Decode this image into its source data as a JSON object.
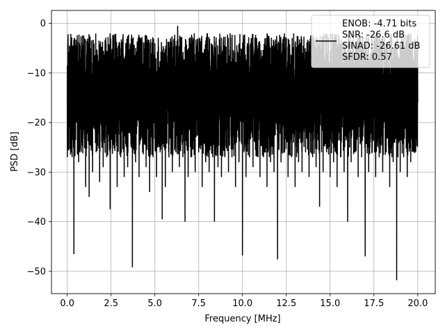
{
  "chart_data": {
    "type": "line",
    "title": "",
    "xlabel": "Frequency [MHz]",
    "ylabel": "PSD [dB]",
    "xlim": [
      -0.9,
      21.0
    ],
    "ylim": [
      -54.5,
      2.6
    ],
    "xticks": [
      0.0,
      2.5,
      5.0,
      7.5,
      10.0,
      12.5,
      15.0,
      17.5,
      20.0
    ],
    "xtick_labels": [
      "0.0",
      "2.5",
      "5.0",
      "7.5",
      "10.0",
      "12.5",
      "15.0",
      "17.5",
      "20.0"
    ],
    "yticks": [
      0,
      -10,
      -20,
      -30,
      -40,
      -50
    ],
    "ytick_labels": [
      "0",
      "−10",
      "−20",
      "−30",
      "−40",
      "−50"
    ],
    "grid": true,
    "legend_position": "upper right",
    "legend_lines": [
      "ENOB: -4.71 bits",
      "SNR: -26.6 dB",
      "SINAD: -26.61 dB",
      "SFDR: 0.57"
    ],
    "series": [
      {
        "color": "#000000",
        "x": [
          0.0,
          0.05,
          0.1,
          0.18,
          0.25,
          0.3,
          0.38,
          0.45,
          0.55,
          0.65,
          0.75,
          0.85,
          0.95,
          1.05,
          1.15,
          1.25,
          1.35,
          1.45,
          1.55,
          1.65,
          1.75,
          1.85,
          1.95,
          2.05,
          2.15,
          2.25,
          2.35,
          2.45,
          2.55,
          2.65,
          2.75,
          2.85,
          2.95,
          3.05,
          3.15,
          3.25,
          3.35,
          3.45,
          3.55,
          3.65,
          3.72,
          3.8,
          3.9,
          4.0,
          4.1,
          4.2,
          4.3,
          4.4,
          4.5,
          4.6,
          4.7,
          4.8,
          4.9,
          5.0,
          5.1,
          5.2,
          5.3,
          5.42,
          5.5,
          5.6,
          5.7,
          5.8,
          5.9,
          6.0,
          6.1,
          6.2,
          6.3,
          6.4,
          6.5,
          6.6,
          6.72,
          6.8,
          6.9,
          7.0,
          7.1,
          7.2,
          7.3,
          7.4,
          7.5,
          7.6,
          7.7,
          7.8,
          7.9,
          8.0,
          8.1,
          8.2,
          8.3,
          8.4,
          8.5,
          8.6,
          8.7,
          8.8,
          8.9,
          9.0,
          9.1,
          9.2,
          9.3,
          9.4,
          9.5,
          9.6,
          9.7,
          9.8,
          9.9,
          10.0,
          10.1,
          10.2,
          10.3,
          10.4,
          10.5,
          10.6,
          10.7,
          10.8,
          10.9,
          11.0,
          11.1,
          11.2,
          11.3,
          11.4,
          11.5,
          11.6,
          11.7,
          11.8,
          11.9,
          12.0,
          12.1,
          12.2,
          12.3,
          12.4,
          12.5,
          12.6,
          12.7,
          12.8,
          12.9,
          13.0,
          13.1,
          13.2,
          13.3,
          13.4,
          13.5,
          13.6,
          13.7,
          13.8,
          13.9,
          14.0,
          14.1,
          14.2,
          14.3,
          14.4,
          14.5,
          14.6,
          14.7,
          14.8,
          14.9,
          15.0,
          15.1,
          15.2,
          15.3,
          15.4,
          15.5,
          15.6,
          15.7,
          15.8,
          15.9,
          16.0,
          16.1,
          16.2,
          16.3,
          16.4,
          16.5,
          16.6,
          16.7,
          16.8,
          16.9,
          17.0,
          17.1,
          17.2,
          17.3,
          17.4,
          17.5,
          17.6,
          17.7,
          17.8,
          17.9,
          18.0,
          18.1,
          18.2,
          18.3,
          18.4,
          18.5,
          18.6,
          18.7,
          18.8,
          18.9,
          19.0,
          19.1,
          19.2,
          19.3,
          19.4,
          19.5,
          19.6,
          19.7,
          19.8,
          19.9,
          20.0
        ],
        "y": [
          -16,
          -2.2,
          -21,
          -8,
          -26,
          -9.5,
          -46.5,
          -12,
          -4.5,
          -28,
          -7,
          -24,
          -10,
          -33,
          -6.5,
          -35,
          -5,
          -30,
          -11,
          -26,
          -9,
          -32,
          -7,
          -29,
          -12,
          -27,
          -4.5,
          -37.5,
          -6,
          -24,
          -9,
          -33,
          -5,
          -27,
          -8,
          -31,
          -4,
          -29,
          -10,
          -25,
          -49.2,
          -6,
          -28,
          -9,
          -31,
          -3,
          -26,
          -11,
          -29,
          -5,
          -34,
          -8,
          -27,
          -4,
          -31,
          -10,
          -26,
          -39.5,
          -6,
          -33,
          -9,
          -27,
          -3,
          -30,
          -8,
          -26,
          -0.5,
          -29,
          -10,
          -27,
          -40,
          -5,
          -31,
          -8,
          -27,
          -3,
          -30,
          -9,
          -26,
          -5,
          -33,
          -8,
          -28,
          -2,
          -30,
          -10,
          -27,
          -40,
          -6,
          -29,
          -9,
          -31,
          -4,
          -27,
          -8,
          -30,
          -2,
          -27,
          -11,
          -33,
          -6,
          -28,
          -9,
          -46.8,
          -4,
          -31,
          -8,
          -27,
          -3,
          -29,
          -10,
          -26,
          -5,
          -31,
          -7,
          -27,
          -3,
          -33,
          -9,
          -28,
          -5,
          -30,
          -7,
          -47.6,
          -4,
          -28,
          -8,
          -26,
          -3,
          -31,
          -9,
          -27,
          -5,
          -33,
          -8,
          -28,
          -4,
          -30,
          -10,
          -26,
          -6,
          -31,
          -9,
          -27,
          -4,
          -29,
          -8,
          -37,
          -5,
          -30,
          -7,
          -26,
          -3,
          -31,
          -9,
          -28,
          -6,
          -33,
          -8,
          -27,
          -4,
          -30,
          -9,
          -40,
          -6,
          -28,
          -7,
          -26,
          -5,
          -31,
          -9,
          -27,
          -4,
          -47,
          -8,
          -30,
          -6,
          -26,
          -3,
          -31,
          -8,
          -27,
          -5,
          -30,
          -9,
          -26,
          -4,
          -33,
          -7,
          -28,
          -5,
          -51.8,
          -8,
          -30,
          -6,
          -27,
          -4,
          -31,
          -9,
          -28,
          -5,
          -26,
          -8,
          -16
        ]
      }
    ]
  }
}
